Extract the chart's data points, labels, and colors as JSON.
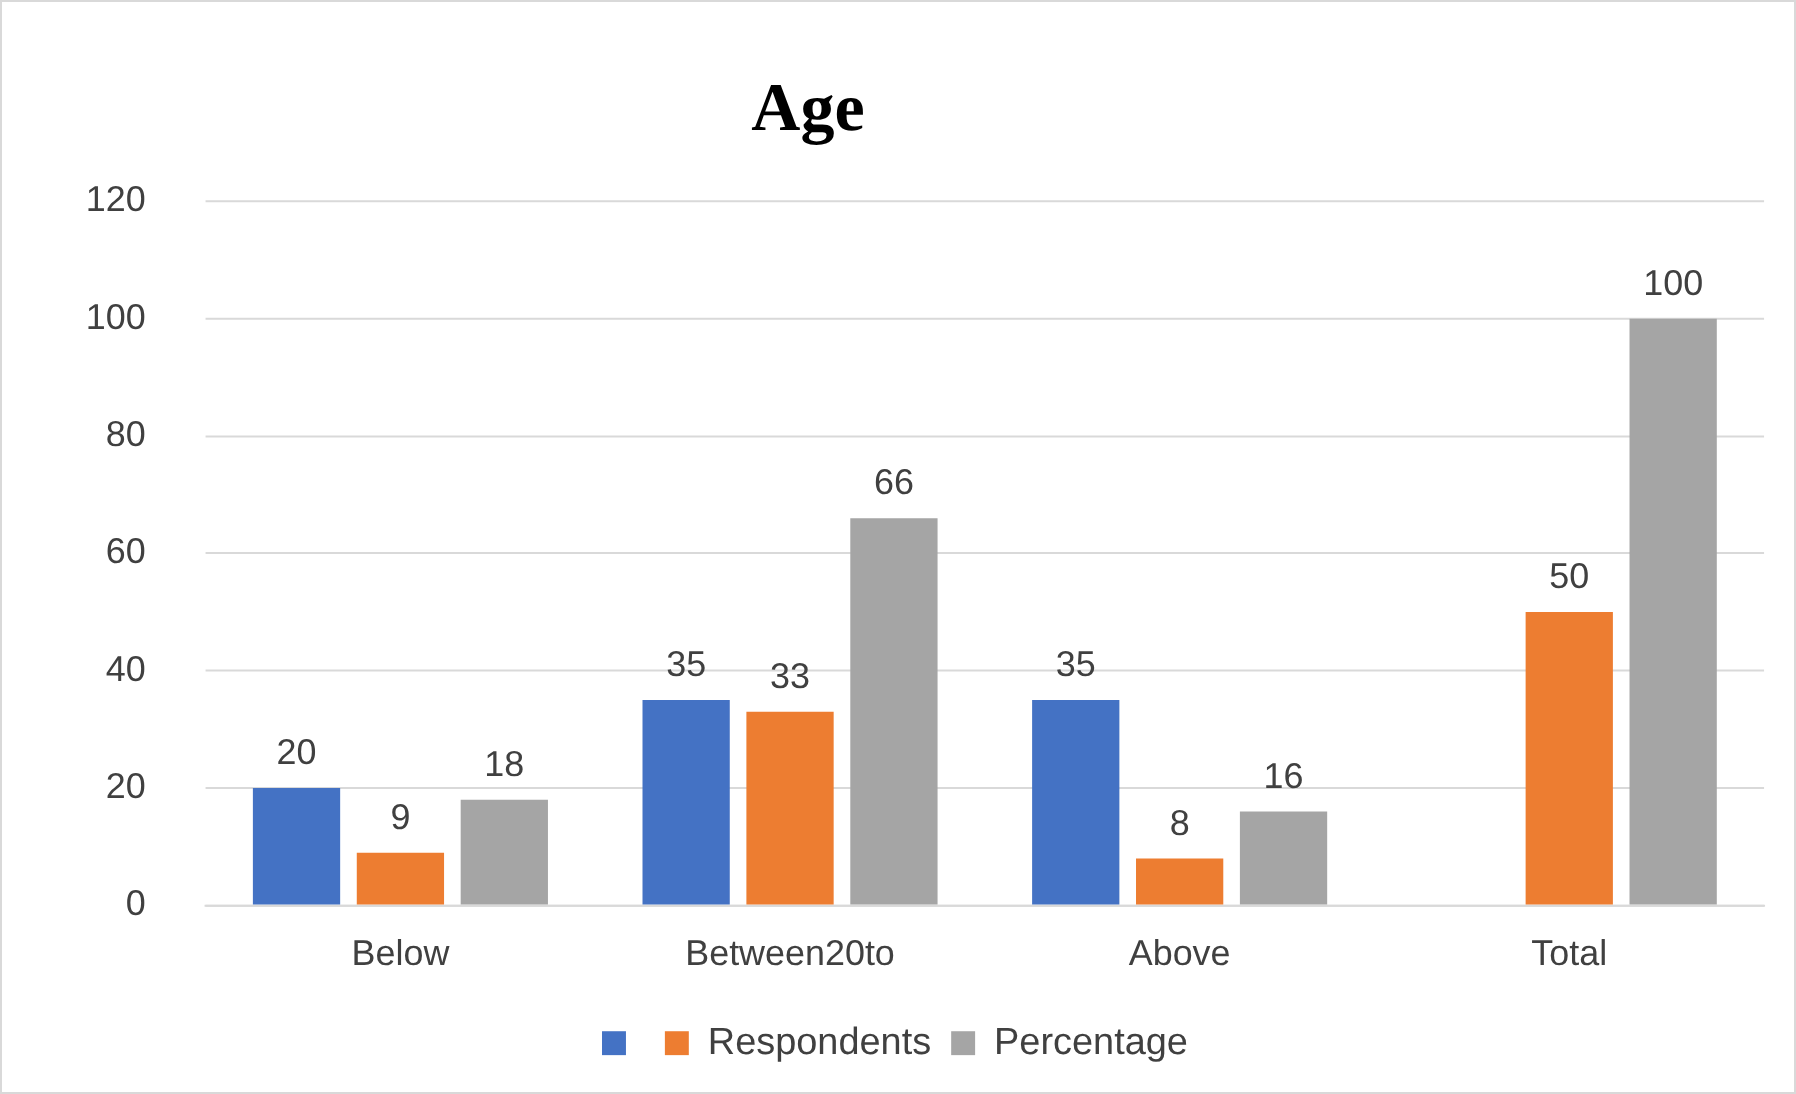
{
  "chart_data": {
    "type": "bar",
    "title": "Age",
    "categories": [
      "Below",
      "Between20to",
      "Above",
      "Total"
    ],
    "series": [
      {
        "color": "#4472c4",
        "values": [
          20,
          35,
          35,
          null
        ]
      },
      {
        "name": "Respondents",
        "color": "#ed7d31",
        "values": [
          9,
          33,
          8,
          50
        ]
      },
      {
        "name": "Percentage",
        "color": "#a5a5a5",
        "values": [
          18,
          66,
          16,
          100
        ]
      }
    ],
    "ylim": [
      0,
      120
    ],
    "yticks": [
      0,
      20,
      40,
      60,
      80,
      100,
      120
    ],
    "grid": "y",
    "legend": "bottom",
    "data_labels": true
  }
}
